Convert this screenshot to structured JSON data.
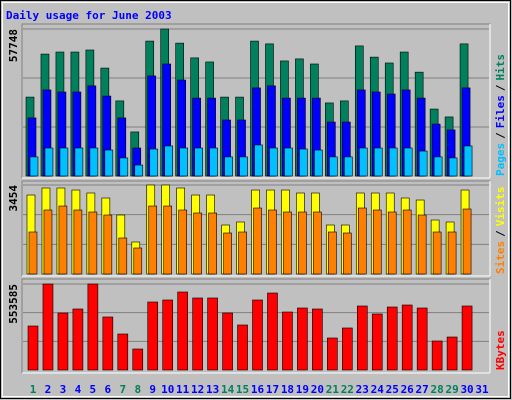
{
  "title": "Daily usage for June 2003",
  "title_color": "#0000ff",
  "categories": [
    "1",
    "2",
    "3",
    "4",
    "5",
    "6",
    "7",
    "8",
    "9",
    "10",
    "11",
    "12",
    "13",
    "14",
    "15",
    "16",
    "17",
    "18",
    "19",
    "20",
    "21",
    "22",
    "23",
    "24",
    "25",
    "26",
    "27",
    "28",
    "29",
    "30",
    "31"
  ],
  "x_label_colors": [
    "#00805c",
    "#0000ff",
    "#0000ff",
    "#0000ff",
    "#0000ff",
    "#0000ff",
    "#00805c",
    "#00805c",
    "#0000ff",
    "#0000ff",
    "#0000ff",
    "#0000ff",
    "#0000ff",
    "#00805c",
    "#00805c",
    "#0000ff",
    "#0000ff",
    "#0000ff",
    "#0000ff",
    "#0000ff",
    "#00805c",
    "#00805c",
    "#0000ff",
    "#0000ff",
    "#0000ff",
    "#0000ff",
    "#0000ff",
    "#00805c",
    "#00805c",
    "#0000ff",
    "#0000ff"
  ],
  "legend_separator": "/",
  "chart_data": [
    {
      "type": "bar",
      "ylim": [
        0,
        57748
      ],
      "yticks": [
        57748
      ],
      "grid_divisions": 3,
      "series": [
        {
          "name": "Hits",
          "color": "#00805c",
          "values": [
            31000,
            47900,
            48700,
            48700,
            49500,
            42400,
            29500,
            17300,
            53000,
            57748,
            52200,
            46400,
            44800,
            31000,
            31000,
            53000,
            51900,
            45200,
            46000,
            44000,
            28700,
            29500,
            51100,
            46700,
            44400,
            48700,
            40800,
            26300,
            23200,
            51900,
            null
          ]
        },
        {
          "name": "Files",
          "color": "#0000ff",
          "values": [
            22800,
            33800,
            33000,
            33000,
            35400,
            31400,
            22800,
            11000,
            39300,
            44000,
            37700,
            30600,
            30600,
            22000,
            22000,
            34600,
            35400,
            30600,
            30600,
            30600,
            21200,
            21200,
            33800,
            33000,
            32200,
            33800,
            30600,
            20400,
            18100,
            34600,
            null
          ]
        },
        {
          "name": "Pages",
          "color": "#00c0ff",
          "values": [
            7500,
            11000,
            11000,
            11000,
            11000,
            10200,
            7100,
            4300,
            10600,
            11800,
            11000,
            11000,
            11000,
            7500,
            7500,
            12200,
            11000,
            11000,
            10600,
            10200,
            7500,
            7500,
            11000,
            11000,
            11000,
            11000,
            9800,
            7500,
            7100,
            11800,
            null
          ]
        }
      ]
    },
    {
      "type": "bar",
      "ylim": [
        0,
        3454
      ],
      "yticks": [
        3454
      ],
      "grid_divisions": 3,
      "series": [
        {
          "name": "Visits",
          "color": "#ffff00",
          "values": [
            3065,
            3337,
            3337,
            3259,
            3143,
            2949,
            2289,
            1242,
            3454,
            3454,
            3337,
            3065,
            3065,
            1901,
            2018,
            3259,
            3259,
            3259,
            3143,
            3143,
            1901,
            1901,
            3143,
            3143,
            3143,
            2949,
            2871,
            2095,
            2018,
            3259,
            null
          ]
        },
        {
          "name": "Sites",
          "color": "#ff8000",
          "values": [
            1630,
            2483,
            2638,
            2483,
            2406,
            2289,
            1397,
            1009,
            2638,
            2638,
            2483,
            2367,
            2367,
            1591,
            1630,
            2561,
            2483,
            2406,
            2406,
            2406,
            1630,
            1591,
            2561,
            2483,
            2406,
            2483,
            2289,
            1630,
            1630,
            2522,
            null
          ]
        }
      ]
    },
    {
      "type": "bar",
      "ylim": [
        0,
        553585
      ],
      "yticks": [
        553585
      ],
      "grid_divisions": 3,
      "series": [
        {
          "name": "KBytes",
          "color": "#ff0000",
          "values": [
            283200,
            553585,
            366900,
            392700,
            553585,
            341200,
            231700,
            135200,
            437700,
            450600,
            502100,
            463500,
            463500,
            366900,
            289700,
            450600,
            495600,
            373300,
            399100,
            392700,
            206000,
            270400,
            412000,
            360500,
            405500,
            418400,
            399100,
            186700,
            212400,
            412000,
            null
          ]
        }
      ]
    }
  ]
}
